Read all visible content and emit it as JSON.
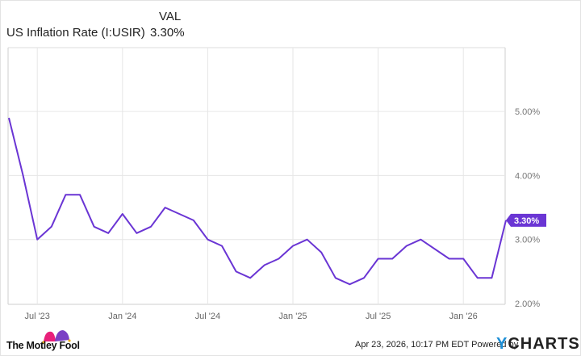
{
  "legend": {
    "column_header": "VAL",
    "series_name": "US Inflation Rate (I:USIR)",
    "series_value": "3.30%"
  },
  "footer": {
    "brand": "The Motley Fool",
    "timestamp": "Apr 23, 2026, 10:17 PM EDT",
    "powered_by": "Powered by",
    "provider_y": "Y",
    "provider_rest": "CHARTS"
  },
  "colors": {
    "line": "#6a35d4",
    "grid": "#e6e6e6",
    "label_bg": "#6a35d4"
  },
  "last_value_label": "3.30%",
  "chart_data": {
    "type": "line",
    "title": "US Inflation Rate (I:USIR)",
    "xlabel": "",
    "ylabel": "",
    "ylim": [
      1.99,
      6.0
    ],
    "grid": true,
    "legend_position": "top-left",
    "y_ticks": [
      "2.00%",
      "3.00%",
      "4.00%",
      "5.00%"
    ],
    "x_ticks": [
      "Jul '23",
      "Jan '24",
      "Jul '24",
      "Jan '25",
      "Jul '25",
      "Jan '26"
    ],
    "x": [
      "May 2023",
      "Jun 2023",
      "Jul 2023",
      "Aug 2023",
      "Sep 2023",
      "Oct 2023",
      "Nov 2023",
      "Dec 2023",
      "Jan 2024",
      "Feb 2024",
      "Mar 2024",
      "Apr 2024",
      "May 2024",
      "Jun 2024",
      "Jul 2024",
      "Aug 2024",
      "Sep 2024",
      "Oct 2024",
      "Nov 2024",
      "Dec 2024",
      "Jan 2025",
      "Feb 2025",
      "Mar 2025",
      "Apr 2025",
      "May 2025",
      "Jun 2025",
      "Jul 2025",
      "Aug 2025",
      "Sep 2025",
      "Oct 2025",
      "Dec 2025",
      "Jan 2026",
      "Feb 2026",
      "Mar 2026",
      "Apr 2026"
    ],
    "series": [
      {
        "name": "US Inflation Rate (I:USIR)",
        "values": [
          4.9,
          4.0,
          3.0,
          3.2,
          3.7,
          3.7,
          3.2,
          3.1,
          3.4,
          3.1,
          3.2,
          3.5,
          3.4,
          3.3,
          3.0,
          2.9,
          2.5,
          2.4,
          2.6,
          2.7,
          2.9,
          3.0,
          2.8,
          2.4,
          2.3,
          2.4,
          2.7,
          2.7,
          2.9,
          3.0,
          2.7,
          2.7,
          2.4,
          2.4,
          3.3
        ]
      }
    ],
    "last_value": 3.3
  }
}
